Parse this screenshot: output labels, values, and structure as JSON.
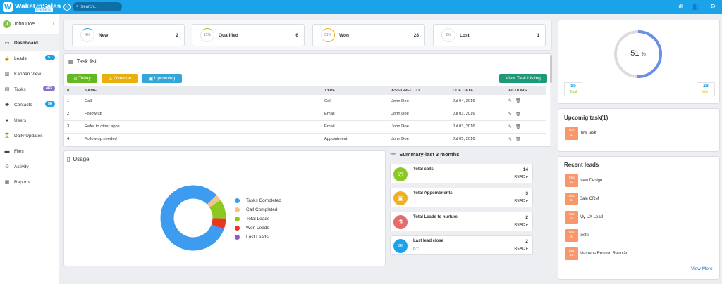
{
  "app": {
    "name": "WakeUpSales",
    "badge": "Live Demo"
  },
  "search": {
    "placeholder": "Search..."
  },
  "user": {
    "name": "John Doe",
    "initial": "J"
  },
  "sidebar": {
    "items": [
      {
        "label": "Dashboard"
      },
      {
        "label": "Leads",
        "badge": "51"
      },
      {
        "label": "Kanban View"
      },
      {
        "label": "Tasks",
        "badge": "483"
      },
      {
        "label": "Contacts",
        "badge": "58"
      },
      {
        "label": "Users"
      },
      {
        "label": "Daily Updates"
      },
      {
        "label": "Files"
      },
      {
        "label": "Activity"
      },
      {
        "label": "Reports"
      }
    ]
  },
  "stats": [
    {
      "ring": "4%",
      "label": "New",
      "count": "2"
    },
    {
      "ring": "11%",
      "label": "Qualified",
      "count": "6"
    },
    {
      "ring": "51%",
      "label": "Won",
      "count": "28"
    },
    {
      "ring": "2%",
      "label": "Lost",
      "count": "1"
    }
  ],
  "tasklist": {
    "title": "Task list",
    "buttons": {
      "today": "Today",
      "overdue": "Overdue",
      "upcoming": "Upcoming",
      "view": "View Task Listing"
    },
    "columns": [
      "#",
      "NAME",
      "TYPE",
      "ASSIGNED TO",
      "DUE DATE",
      "ACTIONS"
    ],
    "rows": [
      {
        "num": "1",
        "name": "Call",
        "type": "Call",
        "assigned": "John Doe",
        "due": "Jul 04, 2016"
      },
      {
        "num": "2",
        "name": "Follow up",
        "type": "Email",
        "assigned": "John Doe",
        "due": "Jul 03, 2016"
      },
      {
        "num": "3",
        "name": "Refer to other apps",
        "type": "Email",
        "assigned": "John Doe",
        "due": "Jul 03, 2016"
      },
      {
        "num": "4",
        "name": "Follow up needed",
        "type": "Appointment",
        "assigned": "John Doe",
        "due": "Jul 05, 2016"
      }
    ]
  },
  "usage": {
    "title": "Usage",
    "legend": [
      {
        "label": "Tasks Completed",
        "color": "#3d9bf0",
        "value": 78
      },
      {
        "label": "Call Completed",
        "color": "#f5c28a",
        "value": 3
      },
      {
        "label": "Total Leads",
        "color": "#8cc920",
        "value": 9
      },
      {
        "label": "Won Leads",
        "color": "#ea3520",
        "value": 5
      },
      {
        "label": "Lost Leads",
        "color": "#8b5cc6",
        "value": 0.5
      }
    ]
  },
  "summary": {
    "title": "Summary-last 3 months",
    "items": [
      {
        "title": "Total calls",
        "sub": "",
        "num": "14",
        "read": "READ",
        "color": "#8cc920"
      },
      {
        "title": "Total Appointments",
        "sub": "",
        "num": "3",
        "read": "READ",
        "color": "#f0b020"
      },
      {
        "title": "Total Leads to nurture",
        "sub": "",
        "num": "2",
        "read": "READ",
        "color": "#e86a6a"
      },
      {
        "title": "Last lead close",
        "sub": "BY:",
        "num": "2",
        "read": "READ",
        "color": "#1aa3e8"
      }
    ]
  },
  "gauge": {
    "value": "51",
    "unit": "%",
    "fraction": 0.51,
    "total_num": "55",
    "total_label": "Total",
    "won_num": "28",
    "won_label": "Won"
  },
  "upcoming": {
    "title": "Upcomig task(1)",
    "items": [
      {
        "month": "Dec",
        "day": "31",
        "label": "new task"
      }
    ]
  },
  "recent": {
    "title": "Recent leads",
    "items": [
      {
        "month": "Feb",
        "day": "22",
        "label": "New Design"
      },
      {
        "month": "Dec",
        "day": "24",
        "label": "Sale CRM"
      },
      {
        "month": "Mar",
        "day": "04",
        "label": "My UX Lead"
      },
      {
        "month": "Mar",
        "day": "01",
        "label": "teste"
      },
      {
        "month": "Mar",
        "day": "18",
        "label": "Matheus Rescon Reunião"
      }
    ],
    "more": "View More"
  }
}
